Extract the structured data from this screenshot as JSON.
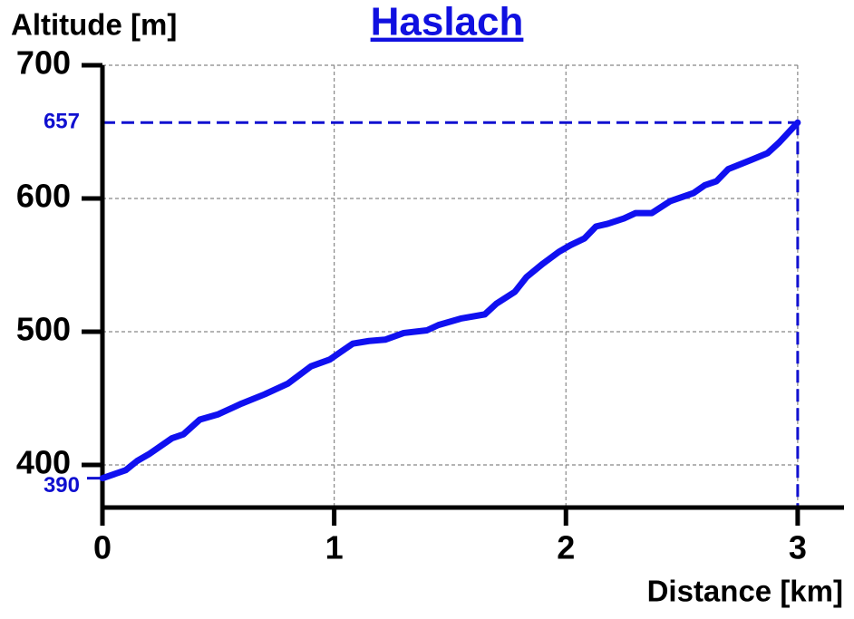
{
  "chart_data": {
    "type": "line",
    "title": "Haslach",
    "x_label": "Distance [km]",
    "y_label": "Altitude [m]",
    "x": [
      0,
      0.1,
      0.15,
      0.2,
      0.3,
      0.35,
      0.42,
      0.5,
      0.6,
      0.7,
      0.8,
      0.9,
      0.98,
      1.03,
      1.08,
      1.15,
      1.22,
      1.3,
      1.4,
      1.45,
      1.55,
      1.65,
      1.7,
      1.78,
      1.83,
      1.9,
      1.97,
      2.02,
      2.08,
      2.13,
      2.18,
      2.25,
      2.3,
      2.37,
      2.45,
      2.55,
      2.6,
      2.65,
      2.7,
      2.8,
      2.87,
      2.92,
      3
    ],
    "series": [
      {
        "name": "Altitude",
        "color": "#1010f0",
        "values": [
          390,
          396,
          403,
          408,
          420,
          423,
          434,
          438,
          446,
          453,
          461,
          474,
          479,
          485,
          491,
          493,
          494,
          499,
          501,
          505,
          510,
          513,
          521,
          530,
          541,
          551,
          560,
          565,
          570,
          579,
          581,
          585,
          589,
          589,
          598,
          604,
          610,
          613,
          622,
          629,
          634,
          642,
          657
        ]
      }
    ],
    "xlim": [
      0,
      3.2
    ],
    "ylim": [
      368,
      700
    ],
    "xticks": [
      0,
      1,
      2,
      3
    ],
    "yticks": [
      400,
      500,
      600,
      700
    ],
    "grid": true,
    "highlight_color": "#1010d0"
  }
}
